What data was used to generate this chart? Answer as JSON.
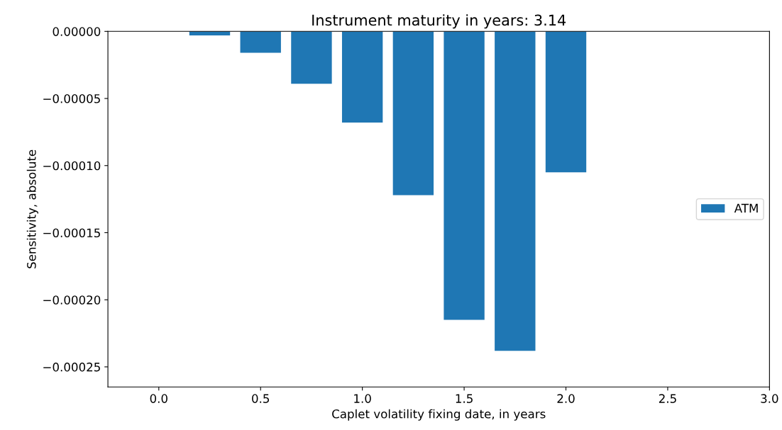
{
  "chart_data": {
    "type": "bar",
    "title": "Instrument maturity in years: 3.14",
    "xlabel": "Caplet volatility fixing date, in years",
    "ylabel": "Sensitivity, absolute",
    "x": [
      0.25,
      0.5,
      0.75,
      1.0,
      1.25,
      1.5,
      1.75,
      2.0
    ],
    "series": [
      {
        "name": "ATM",
        "color": "#1f77b4",
        "values": [
          -3e-06,
          -1.6e-05,
          -3.9e-05,
          -6.8e-05,
          -0.000122,
          -0.000215,
          -0.000238,
          -0.000105
        ]
      }
    ],
    "xlim": [
      -0.25,
      3.0
    ],
    "xticks": [
      {
        "value": 0,
        "label": "0.0"
      },
      0.5,
      {
        "value": 1,
        "label": "1.0"
      },
      1.5,
      {
        "value": 2,
        "label": "2.0"
      },
      2.5,
      {
        "value": 3,
        "label": "3.0"
      }
    ],
    "ylim": [
      -0.000265,
      0.0
    ],
    "yticks": [
      {
        "value": 0.0,
        "label": "0.00000"
      },
      {
        "value": -5e-05,
        "label": "−0.00005"
      },
      {
        "value": -0.0001,
        "label": "−0.00010"
      },
      {
        "value": -0.00015,
        "label": "−0.00015"
      },
      {
        "value": -0.0002,
        "label": "−0.00020"
      },
      {
        "value": -0.00025,
        "label": "−0.00025"
      }
    ],
    "legend": "center right",
    "grid": false
  }
}
